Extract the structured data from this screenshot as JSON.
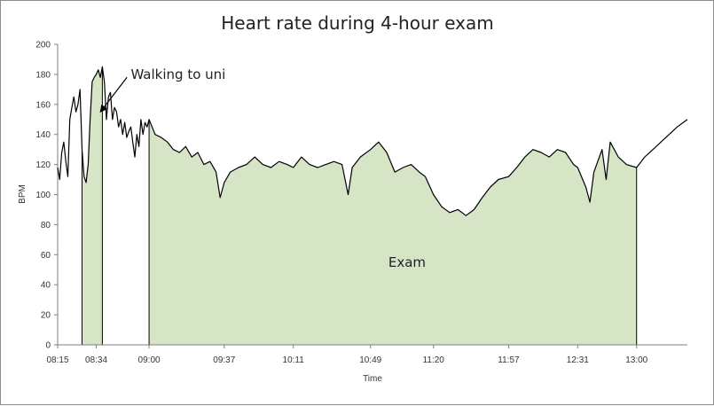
{
  "chart_data": {
    "type": "line",
    "title": "Heart rate during 4-hour exam",
    "xlabel": "Time",
    "ylabel": "BPM",
    "ylim": [
      0,
      200
    ],
    "y_ticks": [
      0,
      20,
      40,
      60,
      80,
      100,
      120,
      140,
      160,
      180,
      200
    ],
    "x_range": [
      "08:15",
      "13:25"
    ],
    "x_tick_labels": [
      "08:15",
      "08:34",
      "09:00",
      "09:37",
      "10:11",
      "10:49",
      "11:20",
      "11:57",
      "12:31",
      "13:00"
    ],
    "grid": false,
    "series": [
      {
        "color": "#000000",
        "points": [
          [
            "08:15",
            118
          ],
          [
            "08:16",
            110
          ],
          [
            "08:17",
            128
          ],
          [
            "08:18",
            135
          ],
          [
            "08:19",
            122
          ],
          [
            "08:20",
            112
          ],
          [
            "08:21",
            150
          ],
          [
            "08:22",
            158
          ],
          [
            "08:23",
            165
          ],
          [
            "08:24",
            155
          ],
          [
            "08:25",
            160
          ],
          [
            "08:26",
            170
          ],
          [
            "08:27",
            130
          ],
          [
            "08:28",
            112
          ],
          [
            "08:29",
            108
          ],
          [
            "08:30",
            120
          ],
          [
            "08:31",
            150
          ],
          [
            "08:32",
            175
          ],
          [
            "08:33",
            178
          ],
          [
            "08:34",
            180
          ],
          [
            "08:35",
            183
          ],
          [
            "08:36",
            178
          ],
          [
            "08:37",
            185
          ],
          [
            "08:38",
            175
          ],
          [
            "08:39",
            150
          ],
          [
            "08:40",
            165
          ],
          [
            "08:41",
            168
          ],
          [
            "08:42",
            150
          ],
          [
            "08:43",
            158
          ],
          [
            "08:44",
            155
          ],
          [
            "08:45",
            145
          ],
          [
            "08:46",
            150
          ],
          [
            "08:47",
            140
          ],
          [
            "08:48",
            148
          ],
          [
            "08:49",
            138
          ],
          [
            "08:50",
            142
          ],
          [
            "08:51",
            145
          ],
          [
            "08:52",
            135
          ],
          [
            "08:53",
            125
          ],
          [
            "08:54",
            140
          ],
          [
            "08:55",
            132
          ],
          [
            "08:56",
            150
          ],
          [
            "08:57",
            140
          ],
          [
            "08:58",
            148
          ],
          [
            "08:59",
            145
          ],
          [
            "09:00",
            150
          ],
          [
            "09:03",
            140
          ],
          [
            "09:06",
            138
          ],
          [
            "09:09",
            135
          ],
          [
            "09:12",
            130
          ],
          [
            "09:15",
            128
          ],
          [
            "09:18",
            132
          ],
          [
            "09:21",
            125
          ],
          [
            "09:24",
            128
          ],
          [
            "09:27",
            120
          ],
          [
            "09:30",
            122
          ],
          [
            "09:33",
            115
          ],
          [
            "09:35",
            98
          ],
          [
            "09:37",
            108
          ],
          [
            "09:40",
            115
          ],
          [
            "09:44",
            118
          ],
          [
            "09:48",
            120
          ],
          [
            "09:52",
            125
          ],
          [
            "09:56",
            120
          ],
          [
            "10:00",
            118
          ],
          [
            "10:04",
            122
          ],
          [
            "10:08",
            120
          ],
          [
            "10:11",
            118
          ],
          [
            "10:15",
            125
          ],
          [
            "10:19",
            120
          ],
          [
            "10:23",
            118
          ],
          [
            "10:27",
            120
          ],
          [
            "10:31",
            122
          ],
          [
            "10:35",
            120
          ],
          [
            "10:38",
            100
          ],
          [
            "10:40",
            118
          ],
          [
            "10:44",
            125
          ],
          [
            "10:49",
            130
          ],
          [
            "10:53",
            135
          ],
          [
            "10:57",
            128
          ],
          [
            "11:01",
            115
          ],
          [
            "11:05",
            118
          ],
          [
            "11:09",
            120
          ],
          [
            "11:13",
            115
          ],
          [
            "11:16",
            112
          ],
          [
            "11:20",
            100
          ],
          [
            "11:24",
            92
          ],
          [
            "11:28",
            88
          ],
          [
            "11:32",
            90
          ],
          [
            "11:36",
            86
          ],
          [
            "11:40",
            90
          ],
          [
            "11:44",
            98
          ],
          [
            "11:48",
            105
          ],
          [
            "11:52",
            110
          ],
          [
            "11:57",
            112
          ],
          [
            "12:01",
            118
          ],
          [
            "12:05",
            125
          ],
          [
            "12:09",
            130
          ],
          [
            "12:13",
            128
          ],
          [
            "12:17",
            125
          ],
          [
            "12:21",
            130
          ],
          [
            "12:25",
            128
          ],
          [
            "12:29",
            120
          ],
          [
            "12:31",
            118
          ],
          [
            "12:35",
            105
          ],
          [
            "12:37",
            95
          ],
          [
            "12:39",
            115
          ],
          [
            "12:43",
            130
          ],
          [
            "12:45",
            110
          ],
          [
            "12:47",
            135
          ],
          [
            "12:51",
            125
          ],
          [
            "12:55",
            120
          ],
          [
            "13:00",
            118
          ],
          [
            "13:04",
            125
          ],
          [
            "13:08",
            130
          ],
          [
            "13:12",
            135
          ],
          [
            "13:16",
            140
          ],
          [
            "13:20",
            145
          ],
          [
            "13:23",
            148
          ],
          [
            "13:25",
            150
          ]
        ]
      }
    ],
    "shaded_regions": [
      {
        "from": "08:27",
        "to": "08:37",
        "color": "#d6e5c6"
      },
      {
        "from": "09:00",
        "to": "13:00",
        "color": "#d6e5c6"
      }
    ],
    "annotations": [
      {
        "text": "Walking to uni",
        "type": "arrow",
        "points_to": [
          "08:36",
          155
        ]
      },
      {
        "text": "Exam",
        "at": [
          "11:07",
          52
        ]
      }
    ]
  }
}
